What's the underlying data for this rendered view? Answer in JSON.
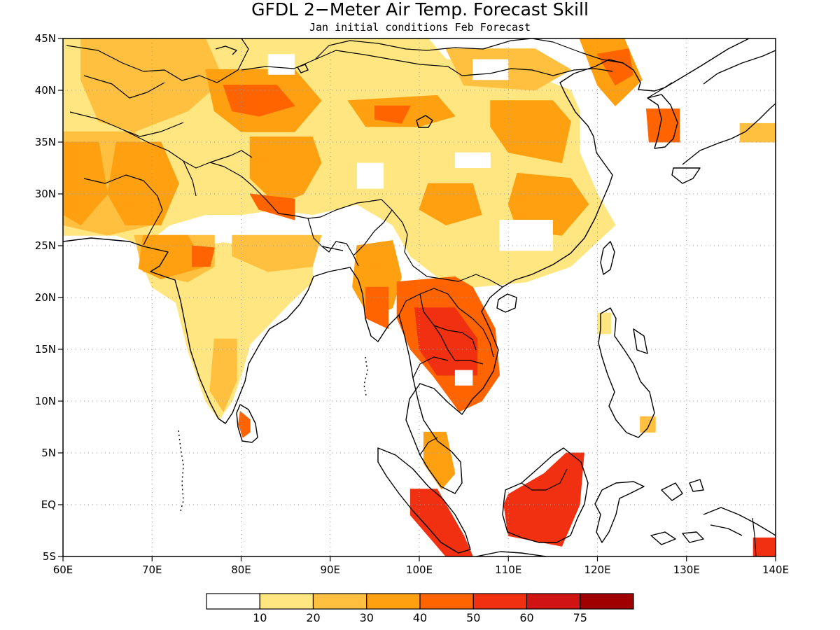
{
  "title": "GFDL 2−Meter Air Temp. Forecast Skill",
  "subtitle": "Jan initial conditions  Feb Forecast",
  "chart_data": {
    "type": "heatmap",
    "x_range": [
      60,
      140
    ],
    "y_range": [
      -5,
      45
    ],
    "x_ticks": [
      {
        "value": 60,
        "label": "60E"
      },
      {
        "value": 70,
        "label": "70E"
      },
      {
        "value": 80,
        "label": "80E"
      },
      {
        "value": 90,
        "label": "90E"
      },
      {
        "value": 100,
        "label": "100E"
      },
      {
        "value": 110,
        "label": "110E"
      },
      {
        "value": 120,
        "label": "120E"
      },
      {
        "value": 130,
        "label": "130E"
      },
      {
        "value": 140,
        "label": "140E"
      }
    ],
    "y_ticks": [
      {
        "value": 45,
        "label": "45N"
      },
      {
        "value": 40,
        "label": "40N"
      },
      {
        "value": 35,
        "label": "35N"
      },
      {
        "value": 30,
        "label": "30N"
      },
      {
        "value": 25,
        "label": "25N"
      },
      {
        "value": 20,
        "label": "20N"
      },
      {
        "value": 15,
        "label": "15N"
      },
      {
        "value": 10,
        "label": "10N"
      },
      {
        "value": 5,
        "label": "5N"
      },
      {
        "value": 0,
        "label": "EQ"
      },
      {
        "value": -5,
        "label": "5S"
      }
    ],
    "grid": true,
    "colorbar": {
      "levels": [
        "10",
        "20",
        "30",
        "40",
        "50",
        "60",
        "75"
      ],
      "colors": [
        "#ffffff",
        "#ffe680",
        "#ffc040",
        "#ffa010",
        "#ff6400",
        "#f03010",
        "#d01414",
        "#a00000"
      ],
      "placement": "bottom"
    },
    "regions": [
      {
        "name": "north-zone",
        "level": 1,
        "points": [
          [
            60,
            45
          ],
          [
            101,
            45
          ],
          [
            103,
            43
          ],
          [
            111,
            42
          ],
          [
            117,
            40
          ],
          [
            118,
            38
          ],
          [
            118,
            34
          ],
          [
            120,
            30
          ],
          [
            122,
            27
          ],
          [
            117,
            23
          ],
          [
            112,
            21.5
          ],
          [
            106,
            21
          ],
          [
            102,
            22
          ],
          [
            99,
            24
          ],
          [
            97,
            27
          ],
          [
            93,
            29
          ],
          [
            88,
            28
          ],
          [
            84,
            28.5
          ],
          [
            80,
            28
          ],
          [
            76,
            28
          ],
          [
            72,
            27
          ],
          [
            69,
            25
          ],
          [
            66,
            26
          ],
          [
            60,
            26
          ]
        ]
      },
      {
        "name": "central-asia",
        "level": 2,
        "points": [
          [
            62,
            45
          ],
          [
            76,
            45
          ],
          [
            78,
            41
          ],
          [
            74,
            38
          ],
          [
            68,
            36
          ],
          [
            64,
            37
          ],
          [
            62,
            41
          ]
        ]
      },
      {
        "name": "west-plateau",
        "level": 2,
        "points": [
          [
            60,
            36
          ],
          [
            68,
            36
          ],
          [
            71,
            32
          ],
          [
            70,
            27
          ],
          [
            65,
            26
          ],
          [
            60,
            27
          ]
        ]
      },
      {
        "name": "pakistan",
        "level": 3,
        "points": [
          [
            66,
            35
          ],
          [
            71,
            35
          ],
          [
            73,
            31
          ],
          [
            71,
            27
          ],
          [
            67,
            27
          ],
          [
            65,
            30
          ]
        ]
      },
      {
        "name": "iran",
        "level": 3,
        "points": [
          [
            60,
            35
          ],
          [
            64,
            35
          ],
          [
            65,
            30
          ],
          [
            62,
            27
          ],
          [
            60,
            28
          ]
        ]
      },
      {
        "name": "tarim",
        "level": 3,
        "points": [
          [
            76,
            42
          ],
          [
            86,
            42
          ],
          [
            89,
            39
          ],
          [
            86,
            36
          ],
          [
            80,
            36
          ],
          [
            77,
            38
          ]
        ]
      },
      {
        "name": "tarim-core",
        "level": 4,
        "points": [
          [
            78,
            40.5
          ],
          [
            84,
            40.5
          ],
          [
            86,
            38.5
          ],
          [
            82,
            37.5
          ],
          [
            79,
            38
          ]
        ]
      },
      {
        "name": "tibet-north",
        "level": 3,
        "points": [
          [
            81,
            35.5
          ],
          [
            88,
            35.5
          ],
          [
            89,
            33
          ],
          [
            87,
            30
          ],
          [
            84,
            29
          ],
          [
            81,
            31.5
          ]
        ]
      },
      {
        "name": "nepal",
        "level": 4,
        "points": [
          [
            81,
            30
          ],
          [
            86,
            29.5
          ],
          [
            86,
            27.5
          ],
          [
            82,
            28.5
          ]
        ]
      },
      {
        "name": "qilian",
        "level": 3,
        "points": [
          [
            92,
            39
          ],
          [
            102,
            39.5
          ],
          [
            104,
            37.5
          ],
          [
            100,
            36.5
          ],
          [
            94,
            36.5
          ]
        ]
      },
      {
        "name": "qilian-core",
        "level": 4,
        "points": [
          [
            95,
            38.5
          ],
          [
            99,
            38.5
          ],
          [
            98,
            36.8
          ],
          [
            95,
            37.2
          ]
        ]
      },
      {
        "name": "mongolia",
        "level": 2,
        "points": [
          [
            103,
            44
          ],
          [
            113,
            44
          ],
          [
            117,
            42
          ],
          [
            113,
            40
          ],
          [
            105,
            40.5
          ]
        ]
      },
      {
        "name": "north-china",
        "level": 3,
        "points": [
          [
            108,
            39
          ],
          [
            115,
            39
          ],
          [
            117,
            37
          ],
          [
            116,
            33
          ],
          [
            110,
            34
          ],
          [
            108,
            36.5
          ]
        ]
      },
      {
        "name": "yangtze",
        "level": 3,
        "points": [
          [
            111,
            32
          ],
          [
            117,
            31.5
          ],
          [
            119,
            29
          ],
          [
            116,
            26
          ],
          [
            111,
            26.5
          ],
          [
            110,
            29
          ]
        ]
      },
      {
        "name": "sichuan",
        "level": 3,
        "points": [
          [
            101,
            31
          ],
          [
            106,
            31
          ],
          [
            107,
            28
          ],
          [
            103,
            27
          ],
          [
            100,
            28.5
          ]
        ]
      },
      {
        "name": "manchuria",
        "level": 3,
        "points": [
          [
            118,
            45
          ],
          [
            123,
            45
          ],
          [
            125,
            41
          ],
          [
            122,
            38.5
          ],
          [
            120,
            40.5
          ]
        ]
      },
      {
        "name": "manchuria-core",
        "level": 4,
        "points": [
          [
            120,
            43.5
          ],
          [
            123.5,
            44
          ],
          [
            124,
            41.5
          ],
          [
            122,
            40.5
          ]
        ]
      },
      {
        "name": "korea",
        "level": 4,
        "points": [
          [
            125.5,
            38.2
          ],
          [
            129.2,
            38.2
          ],
          [
            129.2,
            35
          ],
          [
            125.8,
            35
          ]
        ]
      },
      {
        "name": "india",
        "level": 1,
        "points": [
          [
            68.5,
            24
          ],
          [
            78,
            25.3
          ],
          [
            88,
            24
          ],
          [
            88,
            21.5
          ],
          [
            85.5,
            19.5
          ],
          [
            81,
            15.5
          ],
          [
            80.2,
            13
          ],
          [
            79,
            10
          ],
          [
            77.5,
            8.2
          ],
          [
            76,
            10
          ],
          [
            74,
            15
          ],
          [
            72.7,
            19.5
          ],
          [
            70,
            21
          ]
        ]
      },
      {
        "name": "india-south",
        "level": 2,
        "points": [
          [
            77,
            16
          ],
          [
            79.5,
            16
          ],
          [
            79.5,
            12
          ],
          [
            78,
            9
          ],
          [
            76.5,
            11
          ]
        ]
      },
      {
        "name": "india-northwest",
        "level": 2,
        "points": [
          [
            68,
            26
          ],
          [
            77,
            26
          ],
          [
            77,
            23
          ],
          [
            74,
            21.5
          ],
          [
            69,
            22.5
          ]
        ]
      },
      {
        "name": "rajasthan",
        "level": 3,
        "points": [
          [
            69,
            26
          ],
          [
            74,
            26
          ],
          [
            76,
            23
          ],
          [
            71,
            21.8
          ],
          [
            68.5,
            22.8
          ]
        ]
      },
      {
        "name": "gujarat-core",
        "level": 4,
        "points": [
          [
            74.5,
            25
          ],
          [
            77,
            24.8
          ],
          [
            76.5,
            23
          ],
          [
            74.5,
            23
          ]
        ]
      },
      {
        "name": "gangetic",
        "level": 2,
        "points": [
          [
            79,
            26
          ],
          [
            89,
            26
          ],
          [
            88,
            23
          ],
          [
            83,
            22.5
          ],
          [
            79,
            24
          ]
        ]
      },
      {
        "name": "sri-lanka",
        "level": 4,
        "points": [
          [
            79.9,
            9
          ],
          [
            81,
            8.2
          ],
          [
            81,
            7
          ],
          [
            80.2,
            6.5
          ],
          [
            79.7,
            7.8
          ]
        ]
      },
      {
        "name": "myanmar-north",
        "level": 3,
        "points": [
          [
            93,
            25
          ],
          [
            97,
            25.5
          ],
          [
            98,
            22
          ],
          [
            97,
            19
          ],
          [
            94.5,
            18
          ],
          [
            92.5,
            21
          ]
        ]
      },
      {
        "name": "myanmar-core",
        "level": 4,
        "points": [
          [
            94,
            21
          ],
          [
            96.5,
            21
          ],
          [
            96.5,
            17
          ],
          [
            94,
            18
          ]
        ]
      },
      {
        "name": "indochina",
        "level": 4,
        "points": [
          [
            97.5,
            21.5
          ],
          [
            104,
            22
          ],
          [
            106,
            21
          ],
          [
            108.5,
            17
          ],
          [
            109,
            12.5
          ],
          [
            107,
            10
          ],
          [
            104.5,
            9
          ],
          [
            101.5,
            12.5
          ],
          [
            99,
            15
          ],
          [
            97.5,
            18
          ]
        ]
      },
      {
        "name": "indochina-core",
        "level": 5,
        "points": [
          [
            99.5,
            19
          ],
          [
            104,
            19
          ],
          [
            106.5,
            16
          ],
          [
            106.5,
            12.5
          ],
          [
            102,
            12.5
          ],
          [
            100,
            15
          ]
        ]
      },
      {
        "name": "malaya",
        "level": 3,
        "points": [
          [
            100.5,
            7
          ],
          [
            103,
            7
          ],
          [
            104,
            3
          ],
          [
            102.5,
            1.5
          ],
          [
            100.5,
            4
          ]
        ]
      },
      {
        "name": "sumatra",
        "level": 5,
        "points": [
          [
            99,
            1.5
          ],
          [
            102,
            1.5
          ],
          [
            105,
            -3
          ],
          [
            106,
            -5
          ],
          [
            103,
            -5
          ],
          [
            99,
            -1
          ]
        ]
      },
      {
        "name": "borneo",
        "level": 5,
        "points": [
          [
            110,
            1
          ],
          [
            114,
            3
          ],
          [
            116.5,
            5
          ],
          [
            118.5,
            5
          ],
          [
            118,
            0
          ],
          [
            116,
            -4
          ],
          [
            110,
            -3
          ],
          [
            109.5,
            0
          ]
        ]
      },
      {
        "name": "mindanao",
        "level": 2,
        "points": [
          [
            124.8,
            8.5
          ],
          [
            126.5,
            8.5
          ],
          [
            126.5,
            7
          ],
          [
            124.8,
            7
          ]
        ]
      },
      {
        "name": "luzon",
        "level": 1,
        "points": [
          [
            120,
            18.5
          ],
          [
            121.5,
            18.5
          ],
          [
            121.5,
            16.5
          ],
          [
            120,
            16.5
          ]
        ]
      },
      {
        "name": "new-guinea",
        "level": 5,
        "points": [
          [
            137.5,
            -3.2
          ],
          [
            140,
            -3.2
          ],
          [
            140,
            -5
          ],
          [
            137.5,
            -5
          ]
        ]
      },
      {
        "name": "japan",
        "level": 2,
        "points": [
          [
            136,
            36.8
          ],
          [
            140,
            36.8
          ],
          [
            140,
            35
          ],
          [
            136,
            35
          ]
        ]
      }
    ],
    "white_patches": [
      {
        "name": "taklimakan-gap",
        "points": [
          [
            93,
            33
          ],
          [
            96,
            33
          ],
          [
            96,
            30.5
          ],
          [
            93,
            30.5
          ]
        ]
      },
      {
        "name": "tibet-gap",
        "points": [
          [
            104,
            34
          ],
          [
            108,
            34
          ],
          [
            108,
            32.5
          ],
          [
            104,
            32.5
          ]
        ]
      },
      {
        "name": "yunnan-gap",
        "points": [
          [
            109,
            27.5
          ],
          [
            115,
            27.5
          ],
          [
            115,
            24.5
          ],
          [
            109,
            24.5
          ]
        ]
      },
      {
        "name": "mongolia-gap",
        "points": [
          [
            83,
            43.5
          ],
          [
            86,
            43.5
          ],
          [
            86,
            41.5
          ],
          [
            83,
            41.5
          ]
        ]
      },
      {
        "name": "gobi-gap",
        "points": [
          [
            106,
            43
          ],
          [
            110,
            43
          ],
          [
            110,
            41
          ],
          [
            106,
            41
          ]
        ]
      },
      {
        "name": "tonlesap-gap",
        "points": [
          [
            104,
            13
          ],
          [
            106,
            13
          ],
          [
            106,
            11.5
          ],
          [
            104,
            11.5
          ]
        ]
      }
    ]
  }
}
